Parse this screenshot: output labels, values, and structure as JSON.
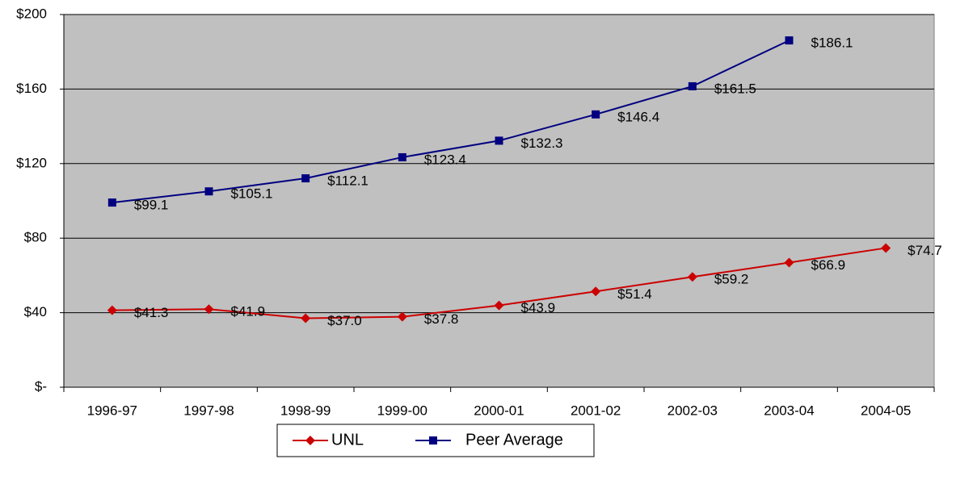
{
  "chart_data": {
    "type": "line",
    "categories": [
      "1996-97",
      "1997-98",
      "1998-99",
      "1999-00",
      "2000-01",
      "2001-02",
      "2002-03",
      "2003-04",
      "2004-05"
    ],
    "series": [
      {
        "name": "UNL",
        "color": "#cc0000",
        "marker": "diamond",
        "values": [
          41.3,
          41.9,
          37.0,
          37.8,
          43.9,
          51.4,
          59.2,
          66.9,
          74.7
        ],
        "value_labels": [
          "$41.3",
          "$41.9",
          "$37.0",
          "$37.8",
          "$43.9",
          "$51.4",
          "$59.2",
          "$66.9",
          "$74.7"
        ]
      },
      {
        "name": "Peer Average",
        "color": "#000080",
        "marker": "square",
        "values": [
          99.1,
          105.1,
          112.1,
          123.4,
          132.3,
          146.4,
          161.5,
          186.1,
          null
        ],
        "value_labels": [
          "$99.1",
          "$105.1",
          "$112.1",
          "$123.4",
          "$132.3",
          "$146.4",
          "$161.5",
          "$186.1",
          null
        ]
      }
    ],
    "ylim": [
      0,
      200
    ],
    "yticks": [
      {
        "value": 0,
        "label": "$-"
      },
      {
        "value": 40,
        "label": "$40"
      },
      {
        "value": 80,
        "label": "$80"
      },
      {
        "value": 120,
        "label": "$120"
      },
      {
        "value": 160,
        "label": "$160"
      },
      {
        "value": 200,
        "label": "$200"
      }
    ],
    "grid": true,
    "plot_background": "#c0c0c0",
    "legend": "bottom"
  }
}
